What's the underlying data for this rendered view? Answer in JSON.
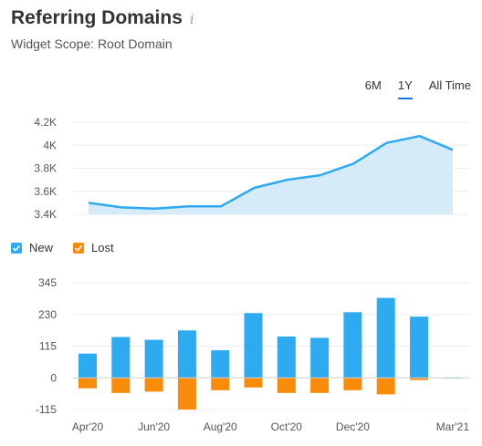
{
  "header": {
    "title": "Referring Domains",
    "info_icon": "i",
    "subtitle": "Widget Scope: Root Domain"
  },
  "periods": [
    {
      "label": "6M",
      "active": false
    },
    {
      "label": "1Y",
      "active": true
    },
    {
      "label": "All Time",
      "active": false
    }
  ],
  "legend": {
    "new_label": "New",
    "lost_label": "Lost",
    "new_color": "#2eaaf0",
    "lost_color": "#f98b0a"
  },
  "chart_data": [
    {
      "type": "area",
      "yticks": [
        "4.2K",
        "4K",
        "3.8K",
        "3.6K",
        "3.4K"
      ],
      "ylim": [
        3400,
        4200
      ],
      "values": [
        3500,
        3460,
        3450,
        3470,
        3470,
        3630,
        3700,
        3740,
        3840,
        4020,
        4080,
        3960
      ],
      "color": "#2eaaf0",
      "fill": "#d6ebfa"
    },
    {
      "type": "bar",
      "yticks": [
        "345",
        "230",
        "115",
        "0",
        "-115"
      ],
      "ylim": [
        -115,
        345
      ],
      "xticks": [
        "Apr'20",
        "Jun'20",
        "Aug'20",
        "Oct'20",
        "Dec'20",
        "Mar'21"
      ],
      "series": [
        {
          "name": "New",
          "values": [
            88,
            148,
            138,
            172,
            100,
            235,
            150,
            145,
            238,
            290,
            222,
            1
          ]
        },
        {
          "name": "Lost",
          "values": [
            -38,
            -55,
            -50,
            -115,
            -45,
            -35,
            -55,
            -55,
            -45,
            -60,
            -8,
            0
          ]
        }
      ]
    }
  ]
}
